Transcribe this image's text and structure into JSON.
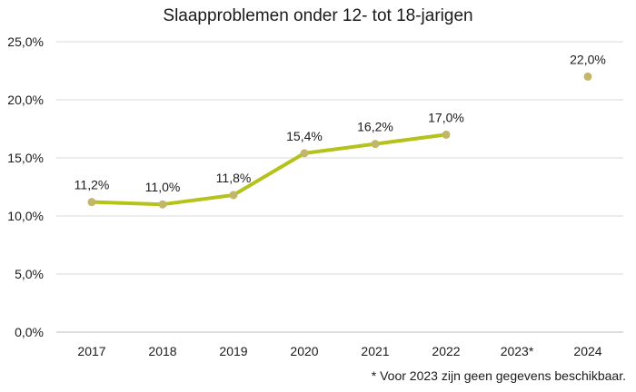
{
  "chart_data": {
    "type": "line",
    "title": "Slaapproblemen onder 12- tot 18-jarigen",
    "categories": [
      "2017",
      "2018",
      "2019",
      "2020",
      "2021",
      "2022",
      "2023*",
      "2024"
    ],
    "series": [
      {
        "name": "Slaapproblemen",
        "values": [
          11.2,
          11.0,
          11.8,
          15.4,
          16.2,
          17.0,
          null,
          22.0
        ],
        "labels": [
          "11,2%",
          "11,0%",
          "11,8%",
          "15,4%",
          "16,2%",
          "17,0%",
          "",
          "22,0%"
        ]
      }
    ],
    "ylim": [
      0,
      25
    ],
    "yticks": [
      0,
      5,
      10,
      15,
      20,
      25
    ],
    "ytick_labels": [
      "0,0%",
      "5,0%",
      "10,0%",
      "15,0%",
      "20,0%",
      "25,0%"
    ],
    "xlabel": "",
    "ylabel": "",
    "grid": true,
    "footnote": "* Voor 2023 zijn geen gegevens beschikbaar."
  },
  "colors": {
    "line": "#b5c21a",
    "marker": "#c2b66a"
  }
}
